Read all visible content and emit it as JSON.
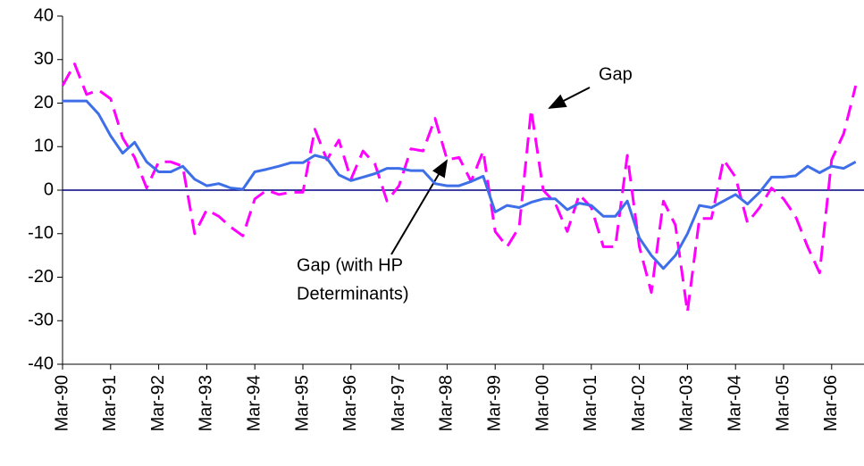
{
  "chart_data": {
    "type": "line",
    "categories": [
      "Mar-90",
      null,
      null,
      null,
      "Mar-91",
      null,
      null,
      null,
      "Mar-92",
      null,
      null,
      null,
      "Mar-93",
      null,
      null,
      null,
      "Mar-94",
      null,
      null,
      null,
      "Mar-95",
      null,
      null,
      null,
      "Mar-96",
      null,
      null,
      null,
      "Mar-97",
      null,
      null,
      null,
      "Mar-98",
      null,
      null,
      null,
      "Mar-99",
      null,
      null,
      null,
      "Mar-00",
      null,
      null,
      null,
      "Mar-01",
      null,
      null,
      null,
      "Mar-02",
      null,
      null,
      null,
      "Mar-03",
      null,
      null,
      null,
      "Mar-04",
      null,
      null,
      null,
      "Mar-05",
      null,
      null,
      null,
      "Mar-06",
      null,
      null
    ],
    "series": [
      {
        "name": "Gap",
        "color": "#ff00ff",
        "dashed": true,
        "values": [
          24,
          29,
          22,
          23,
          21,
          12,
          7.5,
          0.5,
          6.5,
          6.5,
          5.5,
          -10,
          -4.5,
          -6,
          -8.5,
          -10.5,
          -2,
          0,
          -1,
          -0.5,
          -0.5,
          14,
          7,
          11.5,
          2.5,
          9,
          6,
          -2.5,
          1,
          9.5,
          9,
          16.5,
          7,
          7.5,
          2,
          9,
          -9.5,
          -13,
          -8.5,
          18.5,
          0,
          -3,
          -9.5,
          -1,
          -4,
          -13,
          -13,
          8,
          -13,
          -23.5,
          -2.5,
          -8,
          -28,
          -6.5,
          -6.5,
          7,
          3,
          -7.5,
          -4,
          0.5,
          -2,
          -6,
          -13,
          -19,
          7,
          13,
          24
        ]
      },
      {
        "name": "Gap (with HP Determinants)",
        "color": "#3f6fe8",
        "dashed": false,
        "values": [
          20.5,
          20.5,
          20.5,
          17.5,
          12.5,
          8.5,
          11,
          6.5,
          4.2,
          4.2,
          5.5,
          2.5,
          1,
          1.5,
          0.5,
          0.2,
          4.2,
          4.8,
          5.5,
          6.3,
          6.3,
          8,
          7.3,
          3.5,
          2.2,
          3,
          3.8,
          5,
          5,
          4.5,
          4.5,
          1.5,
          1,
          1,
          2,
          3.2,
          -5,
          -3.5,
          -4,
          -2.8,
          -2,
          -2,
          -4.5,
          -3,
          -3.5,
          -6,
          -6,
          -2.5,
          -11,
          -15,
          -18,
          -15,
          -10,
          -3.5,
          -4,
          -2.5,
          -1,
          -3.2,
          -0.5,
          3,
          3,
          3.3,
          5.5,
          4,
          5.5,
          5,
          6.5
        ]
      }
    ],
    "annotations": [
      "Gap",
      "Gap (with HP",
      "Determinants)"
    ],
    "ylim": [
      -40,
      40
    ],
    "yticks": [
      -40,
      -30,
      -20,
      -10,
      0,
      10,
      20,
      30,
      40
    ]
  }
}
